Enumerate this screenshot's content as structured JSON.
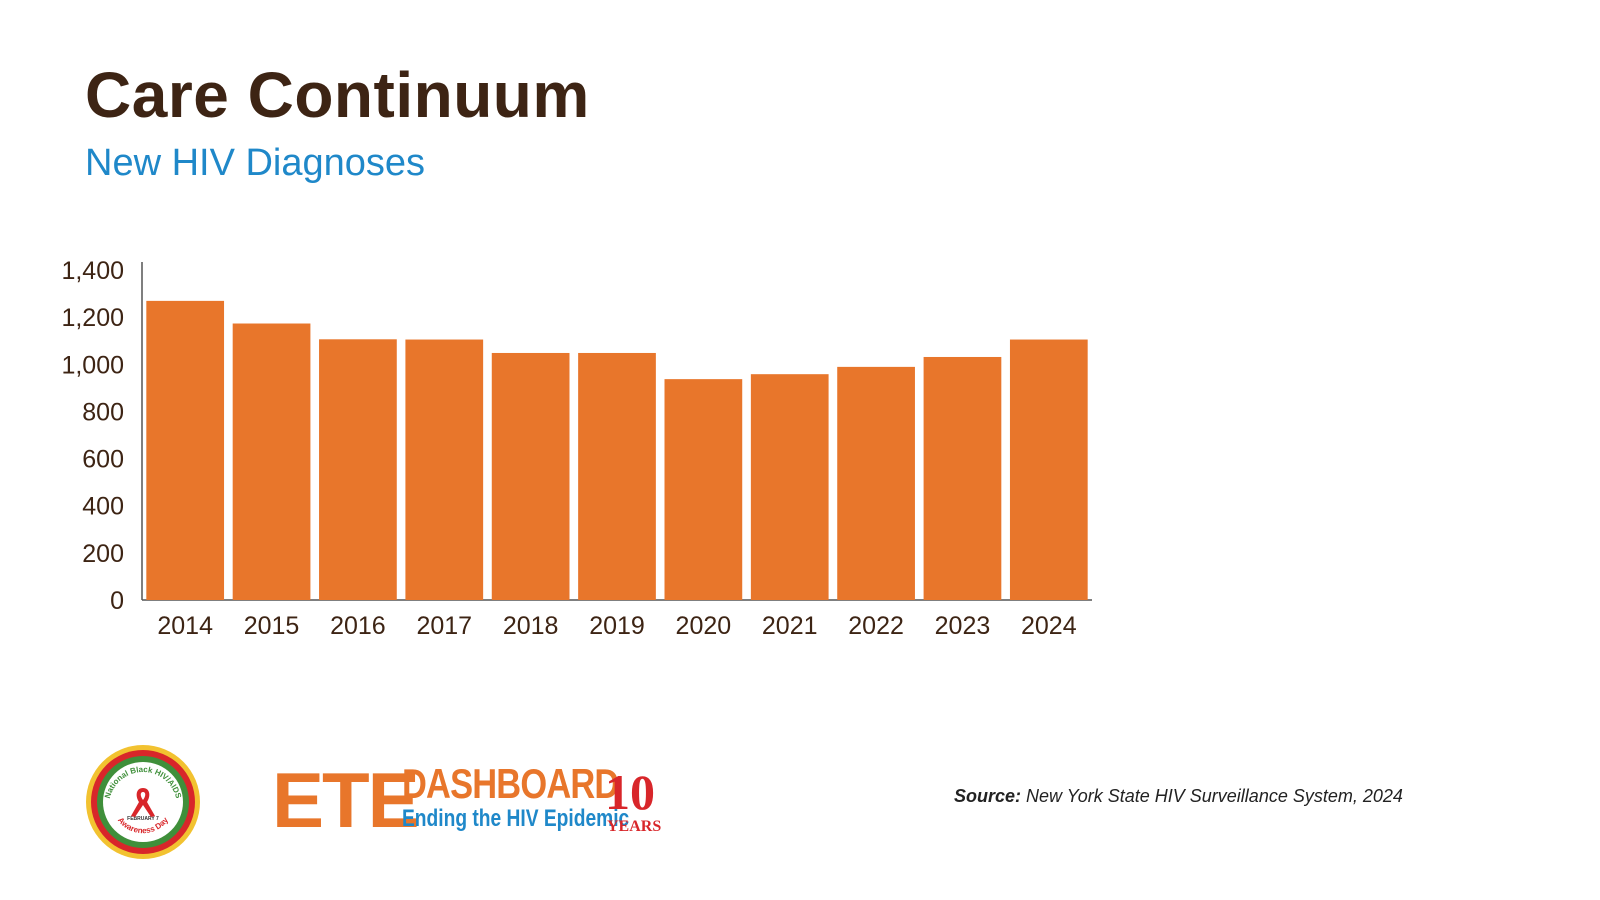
{
  "header": {
    "title": "Care Continuum",
    "subtitle": "New HIV Diagnoses"
  },
  "chart_data": {
    "type": "bar",
    "title": "",
    "xlabel": "",
    "ylabel": "",
    "categories": [
      "2014",
      "2015",
      "2016",
      "2017",
      "2018",
      "2019",
      "2020",
      "2021",
      "2022",
      "2023",
      "2024"
    ],
    "values": [
      1269,
      1173,
      1106,
      1105,
      1048,
      1048,
      937,
      958,
      989,
      1031,
      1105
    ],
    "ylim": [
      0,
      1400
    ],
    "yticks": [
      0,
      200,
      400,
      600,
      800,
      1000,
      1200,
      1400
    ],
    "ytick_labels": [
      "0",
      "200",
      "400",
      "600",
      "800",
      "1,000",
      "1,200",
      "1,400"
    ],
    "grid": false,
    "bar_color": "#e8762b"
  },
  "footer": {
    "source_label": "Source:",
    "source_text": "New York State HIV Surveillance System, 2024",
    "seal_text_top": "National Black HIV/AIDS",
    "seal_text_middle": "FEBRUARY 7",
    "seal_text_bottom": "Awareness Day",
    "ete_big": "ETE",
    "ete_dashboard": "DASHBOARD",
    "ete_tagline": "Ending the HIV Epidemic",
    "ten_number": "10",
    "ten_years": "YEARS"
  },
  "colors": {
    "title": "#3d2414",
    "subtitle": "#1f88c9",
    "accent_orange": "#e8762b",
    "accent_red": "#d8262a"
  }
}
